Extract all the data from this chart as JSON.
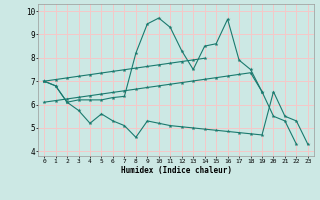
{
  "title": "",
  "xlabel": "Humidex (Indice chaleur)",
  "background_color": "#cce8e4",
  "grid_color": "#f5c8c8",
  "line_color": "#1a7a6e",
  "xlim": [
    -0.5,
    23.5
  ],
  "ylim": [
    3.8,
    10.3
  ],
  "xticks": [
    0,
    1,
    2,
    3,
    4,
    5,
    6,
    7,
    8,
    9,
    10,
    11,
    12,
    13,
    14,
    15,
    16,
    17,
    18,
    19,
    20,
    21,
    22,
    23
  ],
  "yticks": [
    4,
    5,
    6,
    7,
    8,
    9,
    10
  ],
  "lines": [
    [
      7.0,
      6.8,
      6.1,
      5.75,
      5.2,
      5.6,
      5.3,
      5.1,
      4.6,
      5.3,
      5.2,
      5.1,
      5.05,
      5.0,
      4.95,
      4.9,
      4.85,
      4.8,
      4.75,
      4.7,
      6.55,
      5.5,
      5.3,
      4.3
    ],
    [
      7.0,
      6.8,
      6.1,
      6.2,
      6.2,
      6.2,
      6.3,
      6.35,
      8.2,
      9.45,
      9.7,
      9.3,
      8.3,
      7.5,
      8.5,
      8.6,
      9.65,
      7.9,
      7.5,
      6.55,
      5.5,
      5.3,
      4.3,
      null
    ],
    [
      7.0,
      7.07,
      7.14,
      7.21,
      7.28,
      7.35,
      7.42,
      7.49,
      7.56,
      7.63,
      7.7,
      7.77,
      7.84,
      7.91,
      7.98,
      null,
      null,
      null,
      null,
      null,
      null,
      null,
      null,
      null
    ],
    [
      6.1,
      6.17,
      6.24,
      6.31,
      6.38,
      6.45,
      6.52,
      6.59,
      6.66,
      6.73,
      6.8,
      6.87,
      6.94,
      7.01,
      7.08,
      7.15,
      7.22,
      7.29,
      7.36,
      6.55,
      null,
      null,
      null,
      null
    ]
  ]
}
